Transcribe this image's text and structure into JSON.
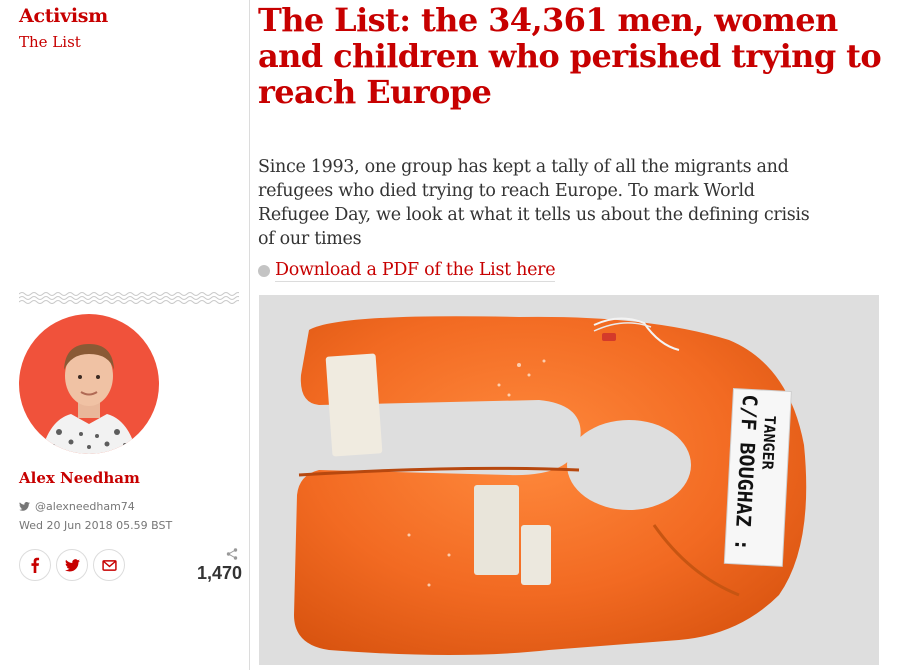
{
  "sidebar": {
    "section": "Activism",
    "series": "The List",
    "author_name": "Alex Needham",
    "twitter_handle": "@alexneedham74",
    "date": "Wed 20 Jun 2018 05.59 BST",
    "share_count": "1,470"
  },
  "article": {
    "headline": "The List: the 34,361 men, women and children who perished trying to reach Europe",
    "standfirst": "Since 1993, one group has kept a tally of all the migrants and refugees who died trying to reach Europe. To mark World Refugee Day, we look at what it tells us about the defining crisis of our times",
    "pdf_link": "Download a PDF of the List here"
  },
  "photo": {
    "label_line1": "C/F BOUGHAZ :",
    "label_line2": "TANGER"
  },
  "colors": {
    "accent": "#c70000",
    "avatar_bg": "#f0523b",
    "life_jacket": "#f26a22"
  }
}
